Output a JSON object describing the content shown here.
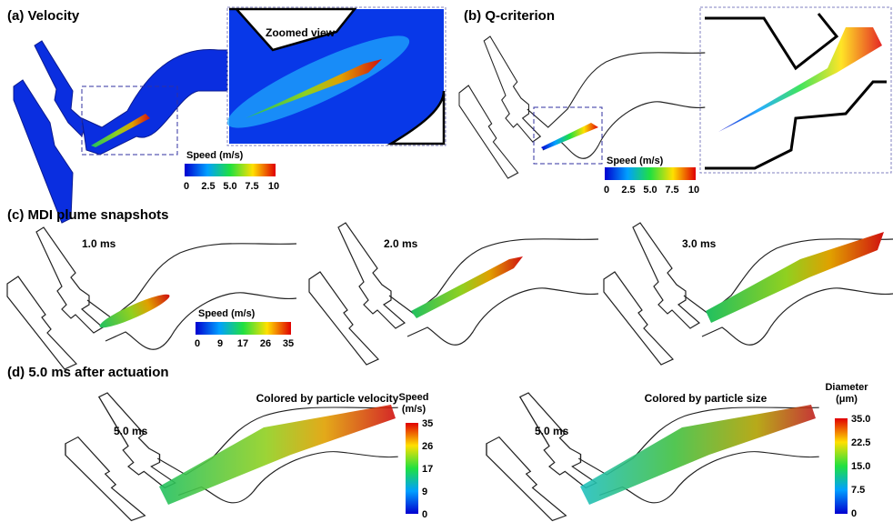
{
  "panels": [
    {
      "label": "(a) Velocity",
      "annotation": "Zoomed view",
      "colorbar": {
        "title": "Speed (m/s)",
        "ticks": [
          "0",
          "2.5",
          "5.0",
          "7.5",
          "10"
        ]
      }
    },
    {
      "label": "(b) Q-criterion",
      "colorbar": {
        "title": "Speed (m/s)",
        "ticks": [
          "0",
          "2.5",
          "5.0",
          "7.5",
          "10"
        ]
      }
    },
    {
      "label": "(c) MDI plume snapshots",
      "times": [
        "1.0 ms",
        "2.0 ms",
        "3.0 ms"
      ],
      "colorbar": {
        "title": "Speed (m/s)",
        "ticks": [
          "0",
          "9",
          "17",
          "26",
          "35"
        ]
      }
    },
    {
      "label": "(d) 5.0 ms after actuation",
      "views": [
        {
          "title": "Colored by particle velocity",
          "time": "5.0 ms",
          "colorbar": {
            "title": "Speed (m/s)",
            "ticks": [
              "35",
              "26",
              "17",
              "9",
              "0"
            ]
          }
        },
        {
          "title": "Colored by particle size",
          "time": "5.0 ms",
          "colorbar": {
            "title": "Diameter (μm)",
            "ticks": [
              "35.0",
              "22.5",
              "15.0",
              "7.5",
              "0"
            ]
          }
        }
      ]
    }
  ]
}
